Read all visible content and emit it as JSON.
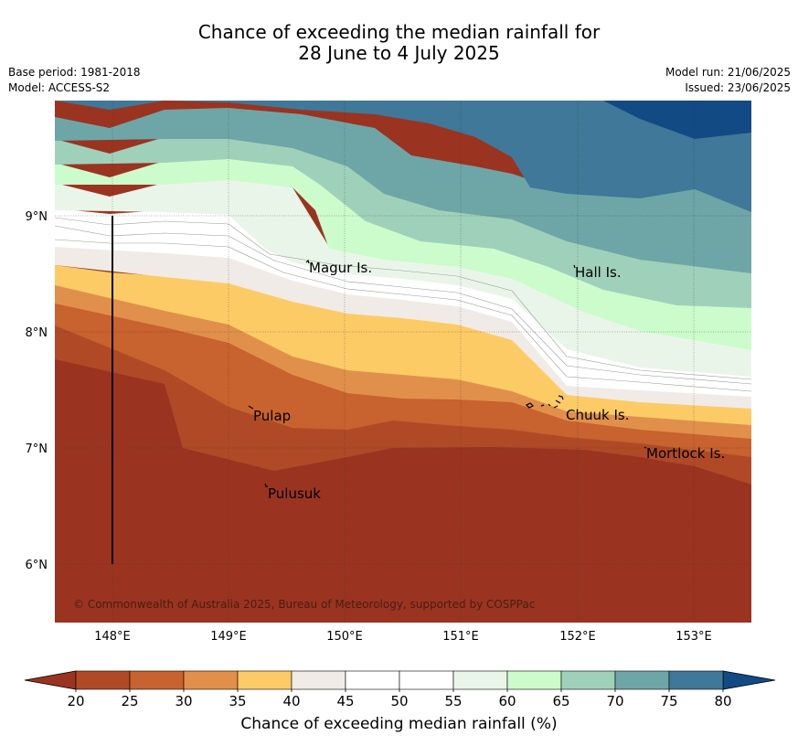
{
  "title_line1": "Chance of exceeding the median rainfall for",
  "title_line2": "28 June to 4 July 2025",
  "base_period": "Base period: 1981-2018",
  "model": "Model: ACCESS-S2",
  "model_run": "Model run: 21/06/2025",
  "issued": "Issued: 23/06/2025",
  "copyright": "© Commonwealth of Australia 2025, Bureau of Meteorology, supported by COSPPac",
  "map": {
    "lon_labels": [
      "148°E",
      "149°E",
      "150°E",
      "151°E",
      "152°E",
      "153°E"
    ],
    "lat_labels": [
      "9°N",
      "8°N",
      "7°N",
      "6°N"
    ],
    "places": [
      "Magur Is.",
      "Hall Is.",
      "Pulap",
      "Chuuk Is.",
      "Mortlock Is.",
      "Pulusuk"
    ]
  },
  "colorbar": {
    "label": "Chance of exceeding median rainfall (%)",
    "ticks": [
      "20",
      "25",
      "30",
      "35",
      "40",
      "45",
      "50",
      "55",
      "60",
      "65",
      "70",
      "75",
      "80"
    ],
    "colors": [
      "#b04a26",
      "#c8622e",
      "#e0904a",
      "#fdcb66",
      "#f0ebe6",
      "#ffffff",
      "#ffffff",
      "#eaf5ea",
      "#ccfccc",
      "#9fd1ba",
      "#6ea6a7",
      "#3f7898"
    ],
    "under_color": "#9a3420",
    "over_color": "#124a84"
  }
}
